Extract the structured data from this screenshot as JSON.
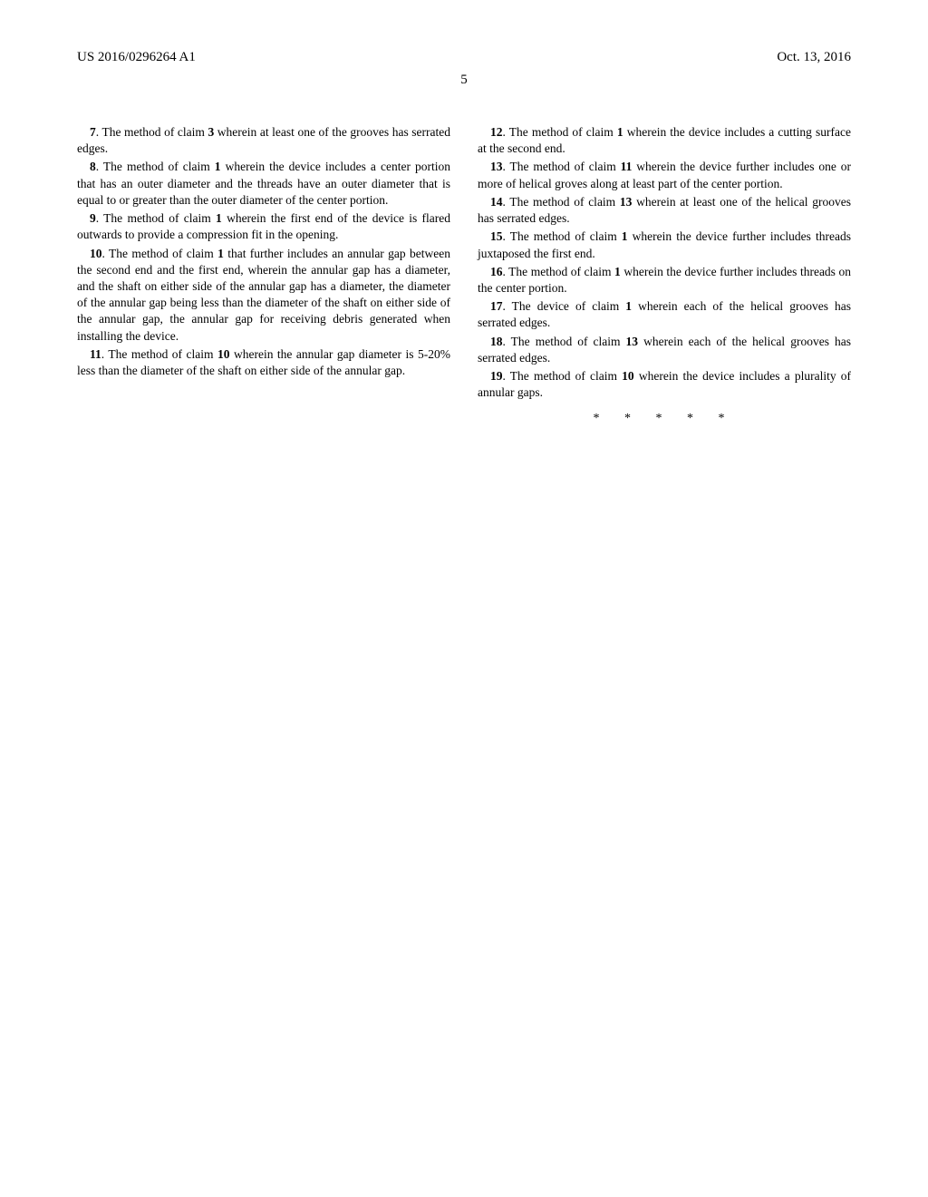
{
  "header": {
    "left": "US 2016/0296264 A1",
    "right": "Oct. 13, 2016"
  },
  "page_number": "5",
  "left_column": {
    "claims": [
      {
        "num": "7",
        "ref": "3",
        "text_before": ". The method of claim ",
        "text_after": " wherein at least one of the grooves has serrated edges."
      },
      {
        "num": "8",
        "ref": "1",
        "text_before": ". The method of claim ",
        "text_after": " wherein the device includes a center portion that has an outer diameter and the threads have an outer diameter that is equal to or greater than the outer diameter of the center portion."
      },
      {
        "num": "9",
        "ref": "1",
        "text_before": ". The method of claim ",
        "text_after": " wherein the first end of the device is flared outwards to provide a compression fit in the opening."
      },
      {
        "num": "10",
        "ref": "1",
        "text_before": ". The method of claim ",
        "text_after": " that further includes an annular gap between the second end and the first end, wherein the annular gap has a diameter, and the shaft on either side of the annular gap has a diameter, the diameter of the annular gap being less than the diameter of the shaft on either side of the annular gap, the annular gap for receiving debris generated when installing the device."
      },
      {
        "num": "11",
        "ref": "10",
        "text_before": ". The method of claim ",
        "text_after": " wherein the annular gap diameter is 5-20% less than the diameter of the shaft on either side of the annular gap."
      }
    ]
  },
  "right_column": {
    "claims": [
      {
        "num": "12",
        "ref": "1",
        "text_before": ". The method of claim ",
        "text_after": " wherein the device includes a cutting surface at the second end."
      },
      {
        "num": "13",
        "ref": "11",
        "text_before": ". The method of claim ",
        "text_after": " wherein the device further includes one or more of helical groves along at least part of the center portion."
      },
      {
        "num": "14",
        "ref": "13",
        "text_before": ". The method of claim ",
        "text_after": " wherein at least one of the helical grooves has serrated edges."
      },
      {
        "num": "15",
        "ref": "1",
        "text_before": ". The method of claim ",
        "text_after": " wherein the device further includes threads juxtaposed the first end."
      },
      {
        "num": "16",
        "ref": "1",
        "text_before": ". The method of claim ",
        "text_after": " wherein the device further includes threads on the center portion."
      },
      {
        "num": "17",
        "ref": "1",
        "text_before": ". The device of claim ",
        "text_after": " wherein each of the helical grooves has serrated edges."
      },
      {
        "num": "18",
        "ref": "13",
        "text_before": ". The method of claim ",
        "text_after": " wherein each of the helical grooves has serrated edges."
      },
      {
        "num": "19",
        "ref": "10",
        "text_before": ". The method of claim ",
        "text_after": " wherein the device includes a plurality of annular gaps."
      }
    ],
    "end_marker": "* * * * *"
  }
}
